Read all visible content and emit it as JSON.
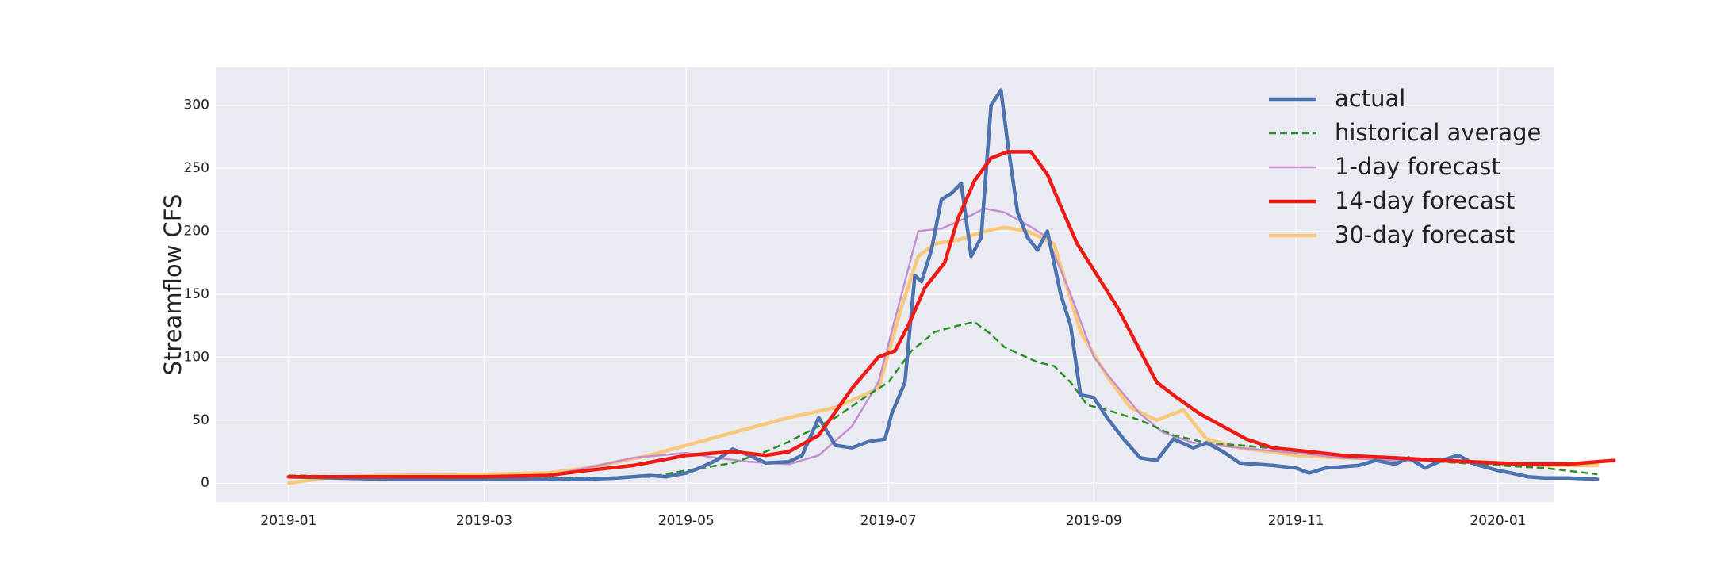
{
  "chart_data": {
    "type": "line",
    "title": "",
    "xlabel": "",
    "ylabel": "Streamflow CFS",
    "xlim": [
      "2018-12-10",
      "2020-01-18"
    ],
    "ylim": [
      -15,
      330
    ],
    "grid": true,
    "legend_position": "top-right",
    "x_ticks": [
      "2019-01",
      "2019-03",
      "2019-05",
      "2019-07",
      "2019-09",
      "2019-11",
      "2020-01"
    ],
    "y_ticks": [
      0,
      50,
      100,
      150,
      200,
      250,
      300
    ],
    "series": [
      {
        "name": "actual",
        "color": "#4c72b0",
        "style": "solid",
        "points": [
          [
            "2019-01-01",
            5
          ],
          [
            "2019-01-15",
            4
          ],
          [
            "2019-02-01",
            3
          ],
          [
            "2019-02-15",
            3
          ],
          [
            "2019-03-01",
            3
          ],
          [
            "2019-03-15",
            3
          ],
          [
            "2019-04-01",
            3
          ],
          [
            "2019-04-10",
            4
          ],
          [
            "2019-04-20",
            6
          ],
          [
            "2019-04-25",
            5
          ],
          [
            "2019-05-01",
            8
          ],
          [
            "2019-05-05",
            12
          ],
          [
            "2019-05-10",
            18
          ],
          [
            "2019-05-15",
            27
          ],
          [
            "2019-05-20",
            22
          ],
          [
            "2019-05-25",
            16
          ],
          [
            "2019-06-01",
            17
          ],
          [
            "2019-06-05",
            22
          ],
          [
            "2019-06-10",
            52
          ],
          [
            "2019-06-15",
            30
          ],
          [
            "2019-06-20",
            28
          ],
          [
            "2019-06-25",
            33
          ],
          [
            "2019-06-30",
            35
          ],
          [
            "2019-07-02",
            55
          ],
          [
            "2019-07-06",
            80
          ],
          [
            "2019-07-09",
            165
          ],
          [
            "2019-07-11",
            160
          ],
          [
            "2019-07-14",
            185
          ],
          [
            "2019-07-17",
            225
          ],
          [
            "2019-07-20",
            230
          ],
          [
            "2019-07-23",
            238
          ],
          [
            "2019-07-26",
            180
          ],
          [
            "2019-07-29",
            195
          ],
          [
            "2019-08-01",
            300
          ],
          [
            "2019-08-04",
            312
          ],
          [
            "2019-08-06",
            270
          ],
          [
            "2019-08-09",
            215
          ],
          [
            "2019-08-12",
            195
          ],
          [
            "2019-08-15",
            185
          ],
          [
            "2019-08-18",
            200
          ],
          [
            "2019-08-22",
            150
          ],
          [
            "2019-08-25",
            125
          ],
          [
            "2019-08-28",
            70
          ],
          [
            "2019-09-01",
            68
          ],
          [
            "2019-09-05",
            52
          ],
          [
            "2019-09-10",
            35
          ],
          [
            "2019-09-15",
            20
          ],
          [
            "2019-09-20",
            18
          ],
          [
            "2019-09-25",
            35
          ],
          [
            "2019-10-01",
            28
          ],
          [
            "2019-10-05",
            32
          ],
          [
            "2019-10-10",
            25
          ],
          [
            "2019-10-15",
            16
          ],
          [
            "2019-10-25",
            14
          ],
          [
            "2019-11-01",
            12
          ],
          [
            "2019-11-05",
            8
          ],
          [
            "2019-11-10",
            12
          ],
          [
            "2019-11-20",
            14
          ],
          [
            "2019-11-25",
            18
          ],
          [
            "2019-12-01",
            15
          ],
          [
            "2019-12-05",
            20
          ],
          [
            "2019-12-10",
            12
          ],
          [
            "2019-12-15",
            18
          ],
          [
            "2019-12-20",
            22
          ],
          [
            "2019-12-25",
            15
          ],
          [
            "2020-01-01",
            10
          ],
          [
            "2020-01-05",
            8
          ],
          [
            "2020-01-10",
            5
          ],
          [
            "2020-01-15",
            4
          ],
          [
            "2020-01-22",
            4
          ],
          [
            "2020-01-31",
            3
          ]
        ]
      },
      {
        "name": "historical average",
        "color": "#2a9128",
        "style": "dashed",
        "points": [
          [
            "2019-01-01",
            6
          ],
          [
            "2019-02-01",
            5
          ],
          [
            "2019-03-01",
            4
          ],
          [
            "2019-04-01",
            4
          ],
          [
            "2019-04-20",
            5
          ],
          [
            "2019-05-01",
            10
          ],
          [
            "2019-05-15",
            16
          ],
          [
            "2019-05-25",
            25
          ],
          [
            "2019-06-01",
            33
          ],
          [
            "2019-06-15",
            52
          ],
          [
            "2019-06-25",
            70
          ],
          [
            "2019-07-01",
            80
          ],
          [
            "2019-07-08",
            105
          ],
          [
            "2019-07-15",
            120
          ],
          [
            "2019-07-22",
            125
          ],
          [
            "2019-07-27",
            128
          ],
          [
            "2019-08-01",
            118
          ],
          [
            "2019-08-05",
            108
          ],
          [
            "2019-08-10",
            102
          ],
          [
            "2019-08-15",
            96
          ],
          [
            "2019-08-20",
            93
          ],
          [
            "2019-08-25",
            80
          ],
          [
            "2019-08-30",
            62
          ],
          [
            "2019-09-05",
            58
          ],
          [
            "2019-09-15",
            50
          ],
          [
            "2019-09-25",
            38
          ],
          [
            "2019-10-05",
            32
          ],
          [
            "2019-10-15",
            30
          ],
          [
            "2019-11-01",
            26
          ],
          [
            "2019-11-15",
            22
          ],
          [
            "2019-12-01",
            20
          ],
          [
            "2019-12-15",
            17
          ],
          [
            "2020-01-01",
            14
          ],
          [
            "2020-01-15",
            12
          ],
          [
            "2020-01-31",
            7
          ]
        ]
      },
      {
        "name": "1-day forecast",
        "color": "#c58fd0",
        "style": "solid",
        "points": [
          [
            "2019-01-01",
            5
          ],
          [
            "2019-02-01",
            5
          ],
          [
            "2019-03-01",
            5
          ],
          [
            "2019-03-20",
            6
          ],
          [
            "2019-04-01",
            12
          ],
          [
            "2019-04-15",
            20
          ],
          [
            "2019-05-01",
            24
          ],
          [
            "2019-05-10",
            20
          ],
          [
            "2019-05-20",
            17
          ],
          [
            "2019-06-01",
            15
          ],
          [
            "2019-06-10",
            22
          ],
          [
            "2019-06-20",
            45
          ],
          [
            "2019-06-28",
            80
          ],
          [
            "2019-07-05",
            150
          ],
          [
            "2019-07-10",
            200
          ],
          [
            "2019-07-17",
            202
          ],
          [
            "2019-07-24",
            210
          ],
          [
            "2019-07-30",
            218
          ],
          [
            "2019-08-05",
            215
          ],
          [
            "2019-08-12",
            205
          ],
          [
            "2019-08-18",
            195
          ],
          [
            "2019-08-25",
            150
          ],
          [
            "2019-09-01",
            100
          ],
          [
            "2019-09-07",
            80
          ],
          [
            "2019-09-15",
            55
          ],
          [
            "2019-09-22",
            40
          ],
          [
            "2019-10-01",
            32
          ],
          [
            "2019-10-15",
            28
          ],
          [
            "2019-11-01",
            24
          ],
          [
            "2019-11-15",
            20
          ],
          [
            "2019-12-01",
            18
          ],
          [
            "2019-12-15",
            17
          ],
          [
            "2020-01-01",
            15
          ],
          [
            "2020-01-15",
            14
          ]
        ]
      },
      {
        "name": "14-day forecast",
        "color": "#ee1b14",
        "style": "solid",
        "points": [
          [
            "2019-01-01",
            5
          ],
          [
            "2019-02-01",
            5
          ],
          [
            "2019-03-01",
            5
          ],
          [
            "2019-03-20",
            6
          ],
          [
            "2019-04-01",
            10
          ],
          [
            "2019-04-15",
            14
          ],
          [
            "2019-05-01",
            22
          ],
          [
            "2019-05-15",
            25
          ],
          [
            "2019-05-25",
            22
          ],
          [
            "2019-06-01",
            25
          ],
          [
            "2019-06-10",
            38
          ],
          [
            "2019-06-20",
            75
          ],
          [
            "2019-06-28",
            100
          ],
          [
            "2019-07-03",
            105
          ],
          [
            "2019-07-07",
            125
          ],
          [
            "2019-07-12",
            155
          ],
          [
            "2019-07-18",
            175
          ],
          [
            "2019-07-22",
            210
          ],
          [
            "2019-07-27",
            240
          ],
          [
            "2019-08-01",
            258
          ],
          [
            "2019-08-06",
            263
          ],
          [
            "2019-08-13",
            263
          ],
          [
            "2019-08-18",
            245
          ],
          [
            "2019-08-22",
            220
          ],
          [
            "2019-08-27",
            190
          ],
          [
            "2019-09-02",
            165
          ],
          [
            "2019-09-08",
            140
          ],
          [
            "2019-09-14",
            110
          ],
          [
            "2019-09-20",
            80
          ],
          [
            "2019-09-26",
            68
          ],
          [
            "2019-10-03",
            55
          ],
          [
            "2019-10-10",
            45
          ],
          [
            "2019-10-17",
            35
          ],
          [
            "2019-10-25",
            28
          ],
          [
            "2019-11-05",
            25
          ],
          [
            "2019-11-15",
            22
          ],
          [
            "2019-12-01",
            20
          ],
          [
            "2019-12-15",
            18
          ],
          [
            "2020-01-01",
            16
          ],
          [
            "2020-01-10",
            15
          ],
          [
            "2020-01-22",
            15
          ],
          [
            "2020-02-05",
            18
          ]
        ]
      },
      {
        "name": "30-day forecast",
        "color": "#f7c978",
        "style": "solid",
        "points": [
          [
            "2019-01-01",
            0
          ],
          [
            "2019-01-15",
            5
          ],
          [
            "2019-02-01",
            6
          ],
          [
            "2019-03-01",
            7
          ],
          [
            "2019-03-20",
            8
          ],
          [
            "2019-04-01",
            12
          ],
          [
            "2019-04-20",
            22
          ],
          [
            "2019-05-01",
            30
          ],
          [
            "2019-05-15",
            40
          ],
          [
            "2019-06-01",
            52
          ],
          [
            "2019-06-15",
            60
          ],
          [
            "2019-06-28",
            75
          ],
          [
            "2019-07-05",
            140
          ],
          [
            "2019-07-10",
            180
          ],
          [
            "2019-07-15",
            190
          ],
          [
            "2019-07-22",
            193
          ],
          [
            "2019-07-30",
            200
          ],
          [
            "2019-08-05",
            203
          ],
          [
            "2019-08-12",
            200
          ],
          [
            "2019-08-20",
            190
          ],
          [
            "2019-08-28",
            120
          ],
          [
            "2019-09-05",
            85
          ],
          [
            "2019-09-12",
            60
          ],
          [
            "2019-09-20",
            50
          ],
          [
            "2019-09-28",
            58
          ],
          [
            "2019-10-05",
            35
          ],
          [
            "2019-10-15",
            28
          ],
          [
            "2019-11-01",
            22
          ],
          [
            "2019-11-15",
            20
          ],
          [
            "2019-12-01",
            19
          ],
          [
            "2019-12-15",
            18
          ],
          [
            "2020-01-01",
            16
          ],
          [
            "2020-01-15",
            14
          ],
          [
            "2020-01-31",
            14
          ]
        ]
      }
    ]
  }
}
